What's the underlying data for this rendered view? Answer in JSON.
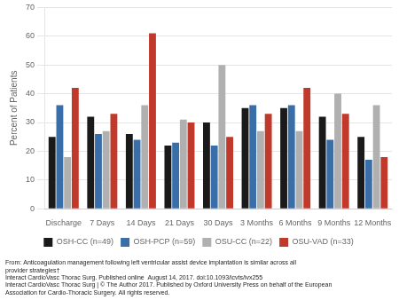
{
  "chart_data": {
    "type": "bar",
    "categories": [
      "Discharge",
      "7 Days",
      "14 Days",
      "21 Days",
      "30 Days",
      "3 Months",
      "6 Months",
      "9 Months",
      "12 Months"
    ],
    "series": [
      {
        "name": "OSH-CC (n=49)",
        "color": "#1a1a1a",
        "values": [
          25,
          32,
          26,
          22,
          30,
          35,
          35,
          32,
          25
        ]
      },
      {
        "name": "OSH-PCP (n=59)",
        "color": "#3a6ea8",
        "values": [
          36,
          26,
          24,
          23,
          22,
          36,
          36,
          24,
          17
        ]
      },
      {
        "name": "OSU-CC (n=22)",
        "color": "#b0b0b0",
        "values": [
          18,
          27,
          36,
          31,
          50,
          27,
          27,
          40,
          36
        ]
      },
      {
        "name": "OSU-VAD (n=33)",
        "color": "#c0392b",
        "values": [
          42,
          33,
          61,
          30,
          25,
          33,
          42,
          33,
          18
        ]
      }
    ],
    "ylabel": "Percent of Patients",
    "ylim": [
      0,
      70
    ],
    "yticks": [
      0,
      10,
      20,
      30,
      40,
      50,
      60,
      70
    ],
    "grid": true,
    "legend": "bottom",
    "annotations": [
      "From: Anticoagulation management following left ventricular assist device implantation is similar across all",
      "provider strategies†",
      "Interact CardioVasc Thorac Surg. Published online  August 14, 2017. doi:10.1093/icvts/ivx255",
      "Interact CardioVasc Thorac Surg | © The Author 2017. Published by Oxford University Press on behalf of the European",
      "Association for Cardio-Thoracic Surgery. All rights reserved."
    ]
  }
}
